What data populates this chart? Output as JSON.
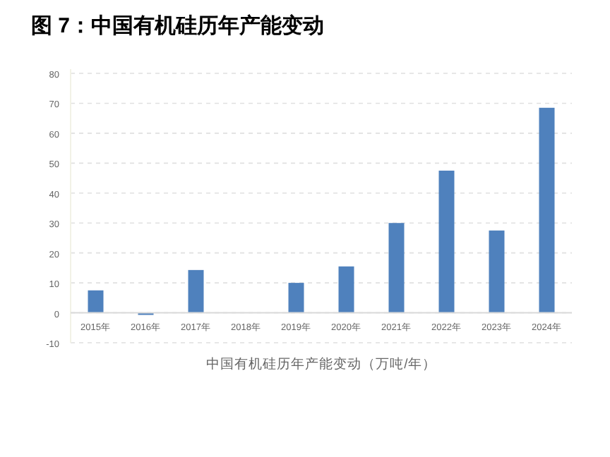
{
  "chart_data": {
    "type": "bar",
    "title": "图 7：中国有机硅历年产能变动",
    "xlabel": "中国有机硅历年产能变动（万吨/年）",
    "categories": [
      "2015年",
      "2016年",
      "2017年",
      "2018年",
      "2019年",
      "2020年",
      "2021年",
      "2022年",
      "2023年",
      "2024年"
    ],
    "values": [
      7.5,
      -0.7,
      14.3,
      0,
      10,
      15.5,
      30,
      47.5,
      27.5,
      68.5
    ],
    "color": "#4f81bd",
    "ylim": [
      -10,
      80
    ],
    "yticks": [
      -10,
      0,
      10,
      20,
      30,
      40,
      50,
      60,
      70,
      80
    ],
    "grid": "y"
  }
}
